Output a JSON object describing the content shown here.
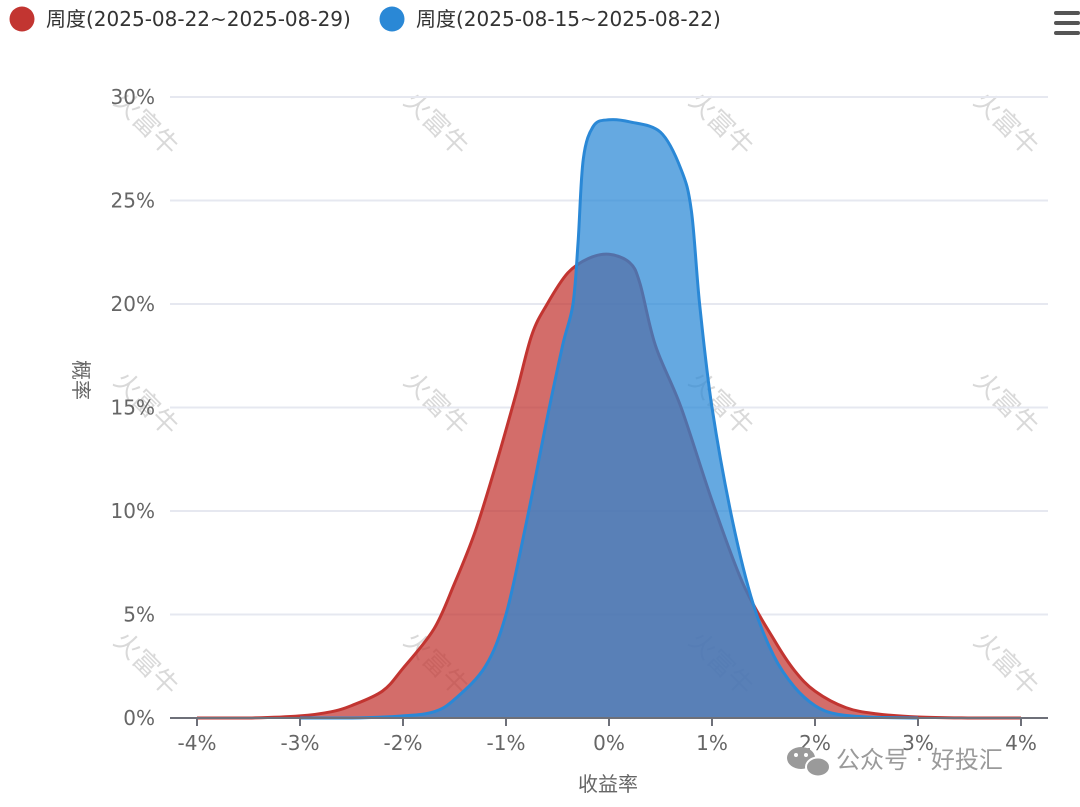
{
  "legend": [
    {
      "name": "周度(2025-08-22~2025-08-29)",
      "color": "#c23531"
    },
    {
      "name": "周度(2025-08-15~2025-08-22)",
      "color": "#2a88d6"
    }
  ],
  "menu_icon": "hamburger-menu-icon",
  "watermark_text": "火富牛",
  "footer": {
    "text": "公众号 · 好投汇",
    "icon": "wechat-icon"
  },
  "chart_data": {
    "type": "area",
    "xlabel": "收益率",
    "ylabel": "概率",
    "x_ticks": [
      "-4%",
      "-3%",
      "-2%",
      "-1%",
      "0%",
      "1%",
      "2%",
      "3%",
      "4%"
    ],
    "y_ticks": [
      "0%",
      "5%",
      "10%",
      "15%",
      "20%",
      "25%",
      "30%"
    ],
    "xlim": [
      -4,
      4
    ],
    "ylim": [
      0,
      30
    ],
    "grid": true,
    "legend_position": "top-left",
    "series": [
      {
        "name": "周度(2025-08-22~2025-08-29)",
        "color": "#c23531",
        "points": [
          [
            -4.0,
            0.0
          ],
          [
            -3.5,
            0.0
          ],
          [
            -3.0,
            0.1
          ],
          [
            -2.7,
            0.3
          ],
          [
            -2.5,
            0.6
          ],
          [
            -2.2,
            1.3
          ],
          [
            -2.0,
            2.4
          ],
          [
            -1.7,
            4.3
          ],
          [
            -1.5,
            6.5
          ],
          [
            -1.3,
            9.0
          ],
          [
            -1.1,
            12.2
          ],
          [
            -0.9,
            15.7
          ],
          [
            -0.75,
            18.5
          ],
          [
            -0.6,
            20.0
          ],
          [
            -0.4,
            21.5
          ],
          [
            -0.2,
            22.2
          ],
          [
            0.0,
            22.4
          ],
          [
            0.2,
            22.0
          ],
          [
            0.3,
            21.0
          ],
          [
            0.45,
            18.0
          ],
          [
            0.7,
            15.0
          ],
          [
            1.0,
            10.5
          ],
          [
            1.3,
            6.5
          ],
          [
            1.6,
            3.8
          ],
          [
            1.8,
            2.3
          ],
          [
            2.0,
            1.3
          ],
          [
            2.3,
            0.5
          ],
          [
            2.6,
            0.2
          ],
          [
            3.0,
            0.05
          ],
          [
            3.5,
            0.0
          ],
          [
            4.0,
            0.0
          ]
        ]
      },
      {
        "name": "周度(2025-08-15~2025-08-22)",
        "color": "#2a88d6",
        "points": [
          [
            -3.0,
            0.0
          ],
          [
            -2.5,
            0.0
          ],
          [
            -2.0,
            0.1
          ],
          [
            -1.7,
            0.3
          ],
          [
            -1.5,
            0.9
          ],
          [
            -1.2,
            2.5
          ],
          [
            -1.0,
            5.0
          ],
          [
            -0.8,
            9.5
          ],
          [
            -0.6,
            14.5
          ],
          [
            -0.45,
            18.0
          ],
          [
            -0.35,
            20.0
          ],
          [
            -0.3,
            23.0
          ],
          [
            -0.25,
            27.0
          ],
          [
            -0.15,
            28.6
          ],
          [
            0.0,
            28.9
          ],
          [
            0.2,
            28.8
          ],
          [
            0.5,
            28.3
          ],
          [
            0.7,
            26.5
          ],
          [
            0.8,
            24.5
          ],
          [
            0.88,
            20.0
          ],
          [
            1.0,
            15.0
          ],
          [
            1.2,
            9.5
          ],
          [
            1.4,
            5.5
          ],
          [
            1.6,
            3.0
          ],
          [
            1.8,
            1.5
          ],
          [
            2.0,
            0.6
          ],
          [
            2.2,
            0.2
          ],
          [
            2.5,
            0.05
          ],
          [
            3.0,
            0.0
          ]
        ]
      }
    ]
  }
}
